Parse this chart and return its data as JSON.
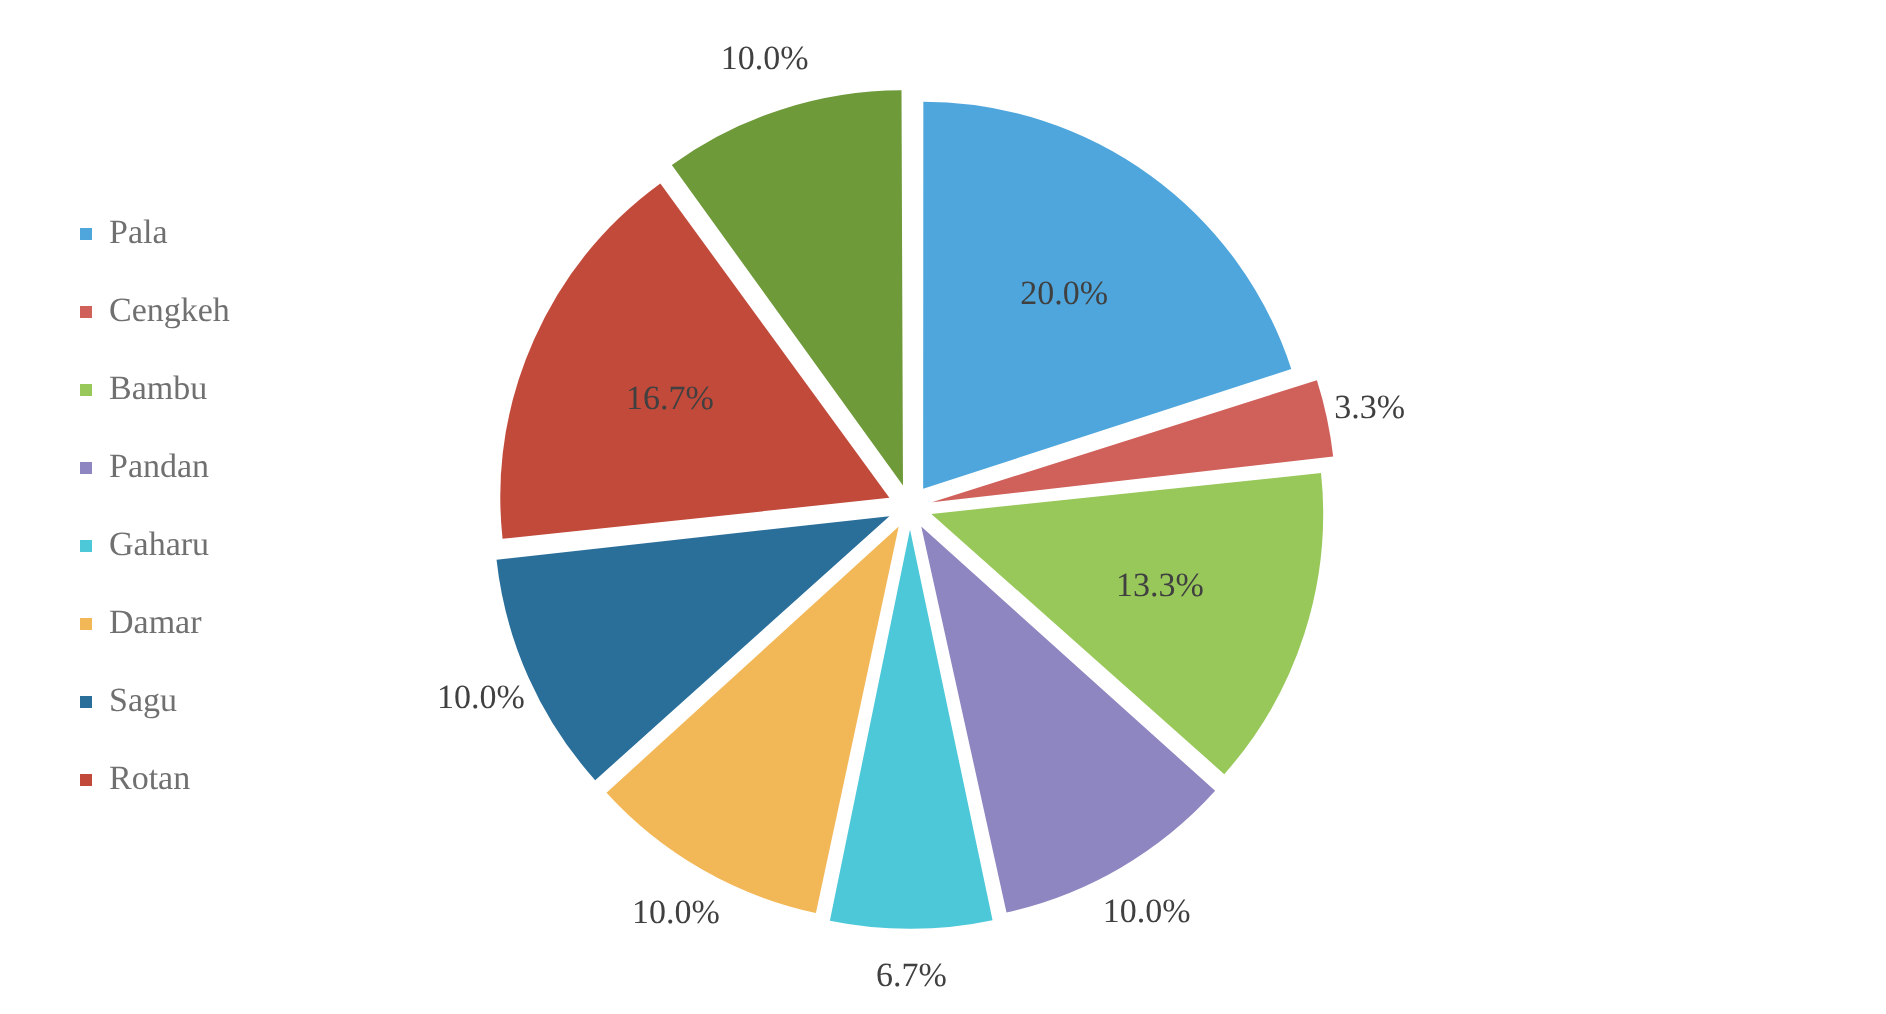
{
  "chart_data": {
    "type": "pie",
    "categories": [
      "Pala",
      "Cengkeh",
      "Bambu",
      "Pandan",
      "Gaharu",
      "Damar",
      "Sagu",
      "Rotan",
      null
    ],
    "values": [
      20.0,
      3.3,
      13.3,
      10.0,
      6.7,
      10.0,
      10.0,
      16.7,
      10.0
    ],
    "colors": [
      "#4fa6dc",
      "#d0605a",
      "#98c85a",
      "#8e86c0",
      "#4cc8d8",
      "#f2b858",
      "#2a6f9a",
      "#c24a3a",
      "#6e9a3a"
    ],
    "value_labels": [
      "20.0%",
      "3.3%",
      "13.3%",
      "10.0%",
      "6.7%",
      "10.0%",
      "10.0%",
      "16.7%",
      "10.0%"
    ],
    "legend": "left"
  }
}
